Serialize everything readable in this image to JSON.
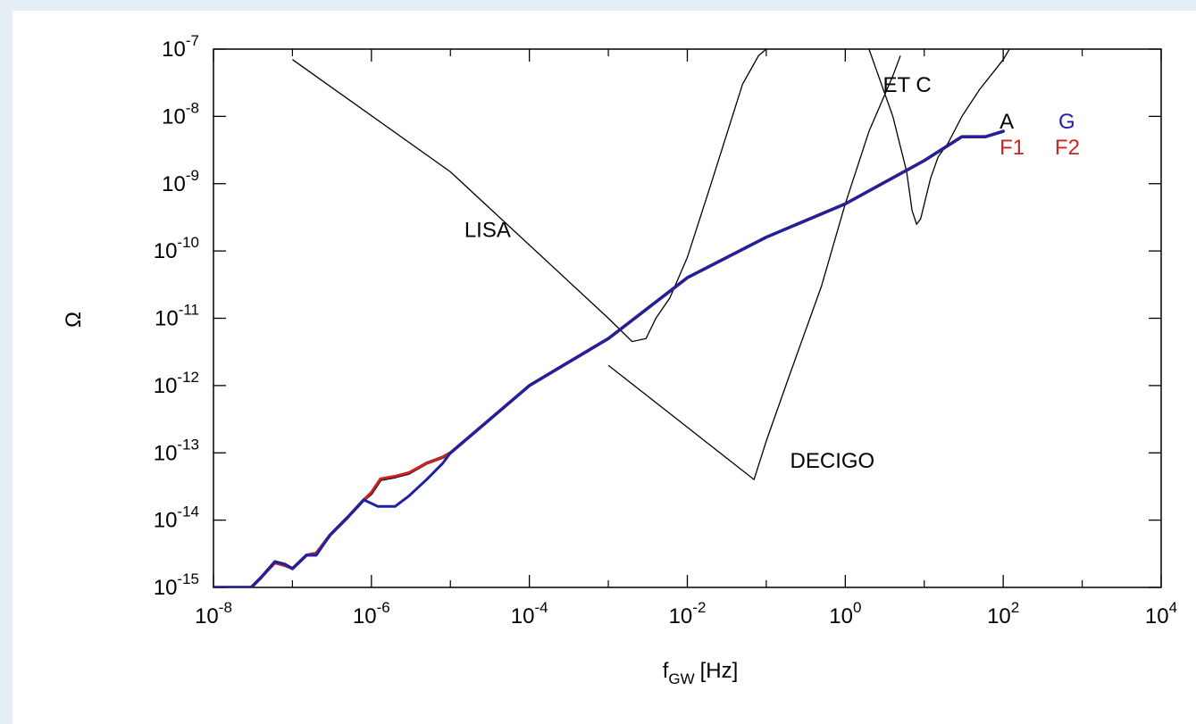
{
  "colors": {
    "page_background": "#e3eef7",
    "plot_background": "#ffffff",
    "black_series": "#000000",
    "red_series": "#cc2222",
    "blue_series": "#1f1fa8"
  },
  "chart_data": {
    "type": "line",
    "xscale": "log",
    "yscale": "log",
    "xlim": [
      1e-08,
      10000.0
    ],
    "ylim": [
      1e-15,
      1e-07
    ],
    "xlabel": "f",
    "xlabel_sub": "GW",
    "xlabel_unit": "[Hz]",
    "ylabel": "Ω",
    "grid": false,
    "x_ticks": [
      {
        "base": "10",
        "exp": "-8",
        "value": 1e-08
      },
      {
        "base": "10",
        "exp": "-6",
        "value": 1e-06
      },
      {
        "base": "10",
        "exp": "-4",
        "value": 0.0001
      },
      {
        "base": "10",
        "exp": "-2",
        "value": 0.01
      },
      {
        "base": "10",
        "exp": "0",
        "value": 1
      },
      {
        "base": "10",
        "exp": "2",
        "value": 100
      },
      {
        "base": "10",
        "exp": "4",
        "value": 10000
      }
    ],
    "y_ticks": [
      {
        "base": "10",
        "exp": "-7",
        "value": 1e-07
      },
      {
        "base": "10",
        "exp": "-8",
        "value": 1e-08
      },
      {
        "base": "10",
        "exp": "-9",
        "value": 1e-09
      },
      {
        "base": "10",
        "exp": "-10",
        "value": 1e-10
      },
      {
        "base": "10",
        "exp": "-11",
        "value": 1e-11
      },
      {
        "base": "10",
        "exp": "-12",
        "value": 1e-12
      },
      {
        "base": "10",
        "exp": "-13",
        "value": 1e-13
      },
      {
        "base": "10",
        "exp": "-14",
        "value": 1e-14
      },
      {
        "base": "10",
        "exp": "-15",
        "value": 1e-15
      }
    ],
    "sensitivity_curves": [
      {
        "name": "LISA",
        "points": [
          [
            1e-07,
            7e-08
          ],
          [
            1e-05,
            1.5e-09
          ],
          [
            0.001,
            1e-11
          ],
          [
            0.002,
            4.5e-12
          ],
          [
            0.003,
            5e-12
          ],
          [
            0.004,
            1e-11
          ],
          [
            0.006,
            2e-11
          ],
          [
            0.01,
            8e-11
          ],
          [
            0.02,
            1e-09
          ],
          [
            0.05,
            3e-08
          ],
          [
            0.08,
            8e-08
          ],
          [
            0.1,
            1e-07
          ]
        ]
      },
      {
        "name": "DECIGO",
        "points": [
          [
            0.001,
            2e-12
          ],
          [
            0.07,
            4e-14
          ],
          [
            0.1,
            1.5e-13
          ],
          [
            0.2,
            1.5e-12
          ],
          [
            0.5,
            3e-11
          ],
          [
            1,
            5e-10
          ],
          [
            2,
            6e-09
          ],
          [
            4,
            4e-08
          ],
          [
            5,
            8e-08
          ]
        ]
      },
      {
        "name": "ET C",
        "points": [
          [
            2,
            1e-07
          ],
          [
            4,
            1e-08
          ],
          [
            6,
            1.5e-09
          ],
          [
            7,
            4e-10
          ],
          [
            8,
            2.5e-10
          ],
          [
            9,
            3e-10
          ],
          [
            12,
            1.2e-09
          ],
          [
            15,
            2.5e-09
          ],
          [
            20,
            4e-09
          ],
          [
            30,
            1e-08
          ],
          [
            50,
            2.5e-08
          ],
          [
            80,
            5e-08
          ],
          [
            100,
            7e-08
          ],
          [
            120,
            1e-07
          ]
        ]
      }
    ],
    "series": [
      {
        "color_key": "black_series",
        "points": [
          [
            1e-08,
            1e-15
          ],
          [
            3e-08,
            1e-15
          ],
          [
            4e-08,
            1.4e-15
          ],
          [
            6e-08,
            2.4e-15
          ],
          [
            8e-08,
            2.2e-15
          ],
          [
            1e-07,
            1.9e-15
          ],
          [
            1.5e-07,
            3e-15
          ],
          [
            2e-07,
            3.2e-15
          ],
          [
            3e-07,
            6e-15
          ],
          [
            5e-07,
            1.1e-14
          ],
          [
            8e-07,
            2e-14
          ],
          [
            1e-06,
            2.5e-14
          ],
          [
            1.3e-06,
            4e-14
          ],
          [
            2e-06,
            4.4e-14
          ],
          [
            3e-06,
            5e-14
          ],
          [
            5e-06,
            7e-14
          ],
          [
            8e-06,
            8.6e-14
          ],
          [
            1e-05,
            1e-13
          ],
          [
            0.0001,
            1e-12
          ],
          [
            0.001,
            5e-12
          ],
          [
            0.01,
            4e-11
          ],
          [
            0.1,
            1.6e-10
          ],
          [
            1,
            5e-10
          ],
          [
            10,
            2.2e-09
          ],
          [
            30,
            5e-09
          ],
          [
            60,
            5e-09
          ],
          [
            100,
            6e-09
          ]
        ]
      },
      {
        "color_key": "red_series",
        "points": [
          [
            1e-08,
            1e-15
          ],
          [
            3e-08,
            1e-15
          ],
          [
            4e-08,
            1.4e-15
          ],
          [
            6e-08,
            2.3e-15
          ],
          [
            8e-08,
            2.1e-15
          ],
          [
            1e-07,
            1.9e-15
          ],
          [
            1.5e-07,
            3e-15
          ],
          [
            2e-07,
            3.2e-15
          ],
          [
            3e-07,
            6e-15
          ],
          [
            5e-07,
            1.1e-14
          ],
          [
            8e-07,
            2e-14
          ],
          [
            1e-06,
            2.6e-14
          ],
          [
            1.3e-06,
            4.1e-14
          ],
          [
            2e-06,
            4.5e-14
          ],
          [
            3e-06,
            5.1e-14
          ],
          [
            5e-06,
            7e-14
          ],
          [
            8e-06,
            8.6e-14
          ],
          [
            1e-05,
            1e-13
          ],
          [
            0.0001,
            1e-12
          ],
          [
            0.001,
            5e-12
          ],
          [
            0.01,
            4e-11
          ],
          [
            0.1,
            1.6e-10
          ],
          [
            1,
            5e-10
          ],
          [
            10,
            2.2e-09
          ],
          [
            30,
            5e-09
          ],
          [
            60,
            5e-09
          ],
          [
            100,
            6e-09
          ]
        ]
      },
      {
        "color_key": "blue_series",
        "points": [
          [
            1e-08,
            1e-15
          ],
          [
            3e-08,
            1e-15
          ],
          [
            4e-08,
            1.4e-15
          ],
          [
            6e-08,
            2.4e-15
          ],
          [
            8e-08,
            2.2e-15
          ],
          [
            1e-07,
            1.9e-15
          ],
          [
            1.5e-07,
            3e-15
          ],
          [
            2e-07,
            3e-15
          ],
          [
            3e-07,
            6e-15
          ],
          [
            5e-07,
            1.1e-14
          ],
          [
            8e-07,
            2e-14
          ],
          [
            1.2e-06,
            1.6e-14
          ],
          [
            2e-06,
            1.6e-14
          ],
          [
            3e-06,
            2.3e-14
          ],
          [
            5e-06,
            4e-14
          ],
          [
            8e-06,
            7e-14
          ],
          [
            1e-05,
            1e-13
          ],
          [
            0.0001,
            1e-12
          ],
          [
            0.001,
            5e-12
          ],
          [
            0.01,
            4e-11
          ],
          [
            0.1,
            1.6e-10
          ],
          [
            1,
            5e-10
          ],
          [
            10,
            2.2e-09
          ],
          [
            30,
            5e-09
          ],
          [
            60,
            5e-09
          ],
          [
            100,
            6e-09
          ]
        ]
      }
    ],
    "annotations": [
      {
        "name": "label-lisa",
        "text": "LISA",
        "x": 1.5e-05,
        "y": 1.6e-10,
        "color_key": "black_series"
      },
      {
        "name": "label-decigo",
        "text": "DECIGO",
        "x": 0.2,
        "y": 6e-14,
        "color_key": "black_series"
      },
      {
        "name": "label-et-c",
        "text": "ET C",
        "x": 3,
        "y": 2.3e-08,
        "color_key": "black_series"
      },
      {
        "name": "label-a",
        "text": "A",
        "x": 90,
        "y": 6.6e-09,
        "color_key": "black_series"
      },
      {
        "name": "label-g",
        "text": "G",
        "x": 500,
        "y": 6.6e-09,
        "color_key": "blue_series"
      },
      {
        "name": "label-f1",
        "text": "F1",
        "x": 90,
        "y": 2.7e-09,
        "color_key": "red_series"
      },
      {
        "name": "label-f2",
        "text": "F2",
        "x": 450,
        "y": 2.7e-09,
        "color_key": "red_series"
      }
    ]
  }
}
